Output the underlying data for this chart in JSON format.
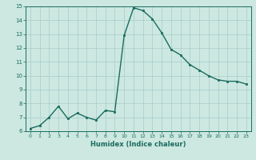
{
  "x": [
    0,
    1,
    2,
    3,
    4,
    5,
    6,
    7,
    8,
    9,
    10,
    11,
    12,
    13,
    14,
    15,
    16,
    17,
    18,
    19,
    20,
    21,
    22,
    23
  ],
  "y": [
    6.2,
    6.4,
    7.0,
    7.8,
    6.9,
    7.3,
    7.0,
    6.8,
    7.5,
    7.4,
    12.9,
    14.9,
    14.7,
    14.1,
    13.1,
    11.9,
    11.5,
    10.8,
    10.4,
    10.0,
    9.7,
    9.6,
    9.6,
    9.4
  ],
  "line_color": "#1a6b5e",
  "marker_color": "#1a6b5e",
  "bg_color": "#cce8e0",
  "grid_color": "#aacccc",
  "xlabel": "Humidex (Indice chaleur)",
  "xlim": [
    -0.5,
    23.5
  ],
  "ylim": [
    6,
    15
  ],
  "yticks": [
    6,
    7,
    8,
    9,
    10,
    11,
    12,
    13,
    14,
    15
  ],
  "xticks": [
    0,
    1,
    2,
    3,
    4,
    5,
    6,
    7,
    8,
    9,
    10,
    11,
    12,
    13,
    14,
    15,
    16,
    17,
    18,
    19,
    20,
    21,
    22,
    23
  ]
}
